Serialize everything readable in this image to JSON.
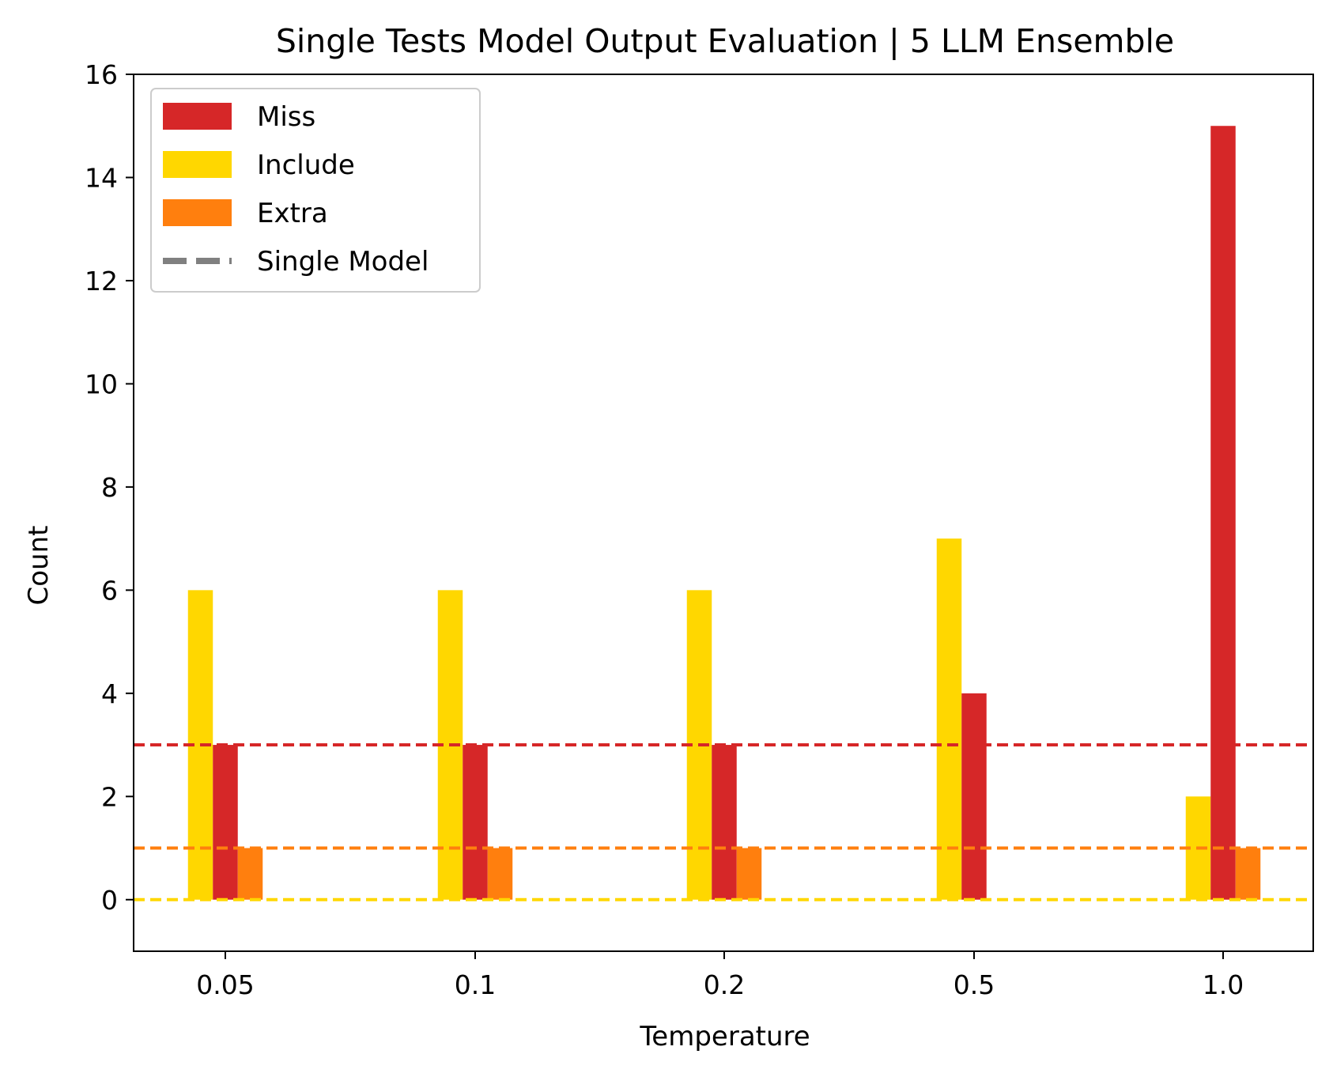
{
  "chart_data": {
    "type": "bar",
    "title": "Single Tests Model Output Evaluation | 5 LLM Ensemble",
    "xlabel": "Temperature",
    "ylabel": "Count",
    "categories": [
      "0.05",
      "0.1",
      "0.2",
      "0.5",
      "1.0"
    ],
    "series": [
      {
        "name": "Include",
        "color": "#ffd700",
        "values": [
          6,
          6,
          6,
          7,
          2
        ]
      },
      {
        "name": "Miss",
        "color": "#d62728",
        "values": [
          3,
          3,
          3,
          4,
          15
        ]
      },
      {
        "name": "Extra",
        "color": "#ff7f0e",
        "values": [
          1,
          1,
          1,
          0,
          1
        ]
      }
    ],
    "reference_lines": [
      {
        "series": "Miss",
        "value": 3,
        "color": "#d62728",
        "style": "dashed"
      },
      {
        "series": "Extra",
        "value": 1,
        "color": "#ff7f0e",
        "style": "dashed"
      },
      {
        "series": "Include",
        "value": 0,
        "color": "#ffd700",
        "style": "dashed"
      }
    ],
    "ylim": [
      -1,
      16
    ],
    "yticks": [
      0,
      2,
      4,
      6,
      8,
      10,
      12,
      14,
      16
    ],
    "grid": false,
    "legend": {
      "placement": "top-left",
      "entries": [
        {
          "label": "Miss",
          "color": "#d62728",
          "kind": "patch"
        },
        {
          "label": "Include",
          "color": "#ffd700",
          "kind": "patch"
        },
        {
          "label": "Extra",
          "color": "#ff7f0e",
          "kind": "patch"
        },
        {
          "label": "Single Model",
          "color": "#808080",
          "kind": "dashed-line"
        }
      ]
    }
  }
}
